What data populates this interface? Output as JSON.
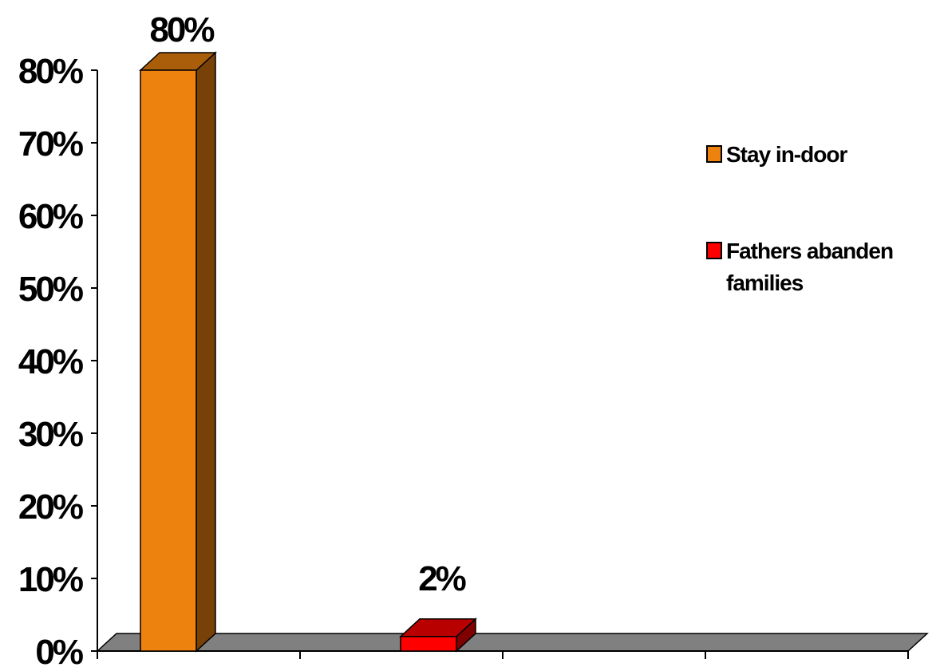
{
  "chart_data": {
    "type": "bar",
    "categories": [
      "Stay in-door",
      "Fathers abanden families"
    ],
    "series": [
      {
        "name": "Stay in-door",
        "values": [
          80,
          null
        ],
        "color": "#EE820E",
        "data_label": "80%"
      },
      {
        "name": "Fathers abanden families",
        "values": [
          null,
          2
        ],
        "color": "#FF0000",
        "data_label": "2%"
      }
    ],
    "ylim": [
      0,
      80
    ],
    "y_ticks": [
      0,
      10,
      20,
      30,
      40,
      50,
      60,
      70,
      80
    ],
    "y_tick_labels": [
      "0%",
      "10%",
      "20%",
      "30%",
      "40%",
      "50%",
      "60%",
      "70%",
      "80%"
    ],
    "x_tick_count": 4,
    "grid": false,
    "three_d": true,
    "legend": {
      "placement": "right",
      "items": [
        {
          "lines": [
            "Stay in-door"
          ],
          "color": "#EE820E"
        },
        {
          "lines": [
            "Fathers abanden",
            "families"
          ],
          "color": "#FF0000"
        }
      ]
    },
    "floor_color": "#808080"
  }
}
